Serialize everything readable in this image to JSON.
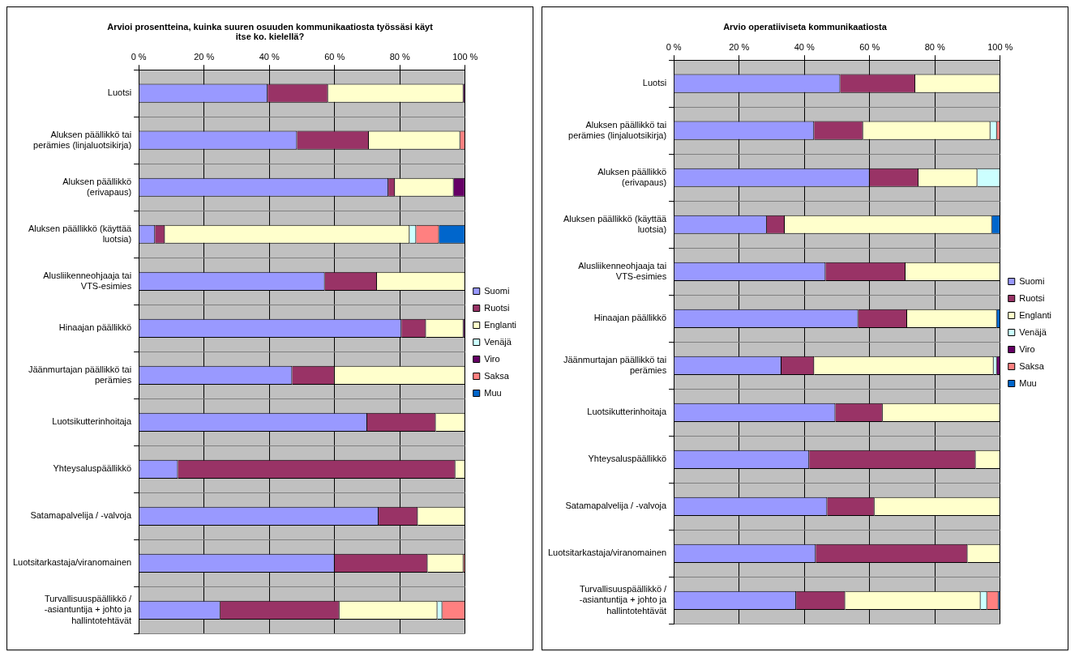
{
  "chart_data": [
    {
      "type": "bar",
      "orientation": "horizontal",
      "stacked": true,
      "title": "Arvioi prosentteina, kuinka suuren osuuden kommunikaatiosta työssäsi käyt itse ko. kielellä?",
      "categories": [
        "Luotsi",
        "Aluksen päällikkö tai perämies (linjaluotsikirja)",
        "Aluksen päällikkö (erivapaus)",
        "Aluksen päällikkö (käyttää luotsia)",
        "Alusliikenneohjaaja tai VTS-esimies",
        "Hinaajan päällikkö",
        "Jäänmurtajan päällikkö tai perämies",
        "Luotsikutterinhoitaja",
        "Yhteysaluspäällikkö",
        "Satamapalvelija / -valvoja",
        "Luotsitarkastaja/viranomainen",
        "Turvallisuuspäällikkö / -asiantuntija + johto ja hallintotehtävät"
      ],
      "series": [
        {
          "name": "Suomi",
          "color": "#9999ff",
          "values": [
            39.5,
            48.5,
            76.5,
            5,
            57,
            80.5,
            47,
            70,
            12,
            73.5,
            60,
            25
          ]
        },
        {
          "name": "Ruotsi",
          "color": "#993366",
          "values": [
            18.5,
            22,
            2,
            3,
            16,
            7.5,
            13,
            21,
            85,
            12,
            28.5,
            36.5
          ]
        },
        {
          "name": "Englanti",
          "color": "#ffffcc",
          "values": [
            41.5,
            28,
            18,
            75,
            27,
            11.5,
            40,
            9,
            3,
            14.5,
            11,
            30
          ]
        },
        {
          "name": "Venäjä",
          "color": "#ccffff",
          "values": [
            0,
            0,
            0,
            2,
            0,
            0,
            0,
            0,
            0,
            0,
            0,
            1.5
          ]
        },
        {
          "name": "Viro",
          "color": "#660066",
          "values": [
            0.5,
            0,
            3.5,
            0,
            0,
            0.5,
            0,
            0,
            0,
            0,
            0,
            0
          ]
        },
        {
          "name": "Saksa",
          "color": "#ff8080",
          "values": [
            0,
            1.5,
            0,
            7,
            0,
            0,
            0,
            0,
            0,
            0,
            0.5,
            7
          ]
        },
        {
          "name": "Muu",
          "color": "#0066cc",
          "values": [
            0,
            0,
            0,
            8,
            0,
            0,
            0,
            0,
            0,
            0,
            0,
            0
          ]
        }
      ],
      "xlim": [
        0,
        100
      ],
      "xticks": [
        {
          "value": 0,
          "label": "0 %"
        },
        {
          "value": 20,
          "label": "20 %"
        },
        {
          "value": 40,
          "label": "40 %"
        },
        {
          "value": 60,
          "label": "60 %"
        },
        {
          "value": 80,
          "label": "80 %"
        },
        {
          "value": 100,
          "label": "100 %"
        }
      ],
      "grid": true,
      "legend": "right"
    },
    {
      "type": "bar",
      "orientation": "horizontal",
      "stacked": true,
      "title": "Arvio operatiiviseta kommunikaatiosta",
      "categories": [
        "Luotsi",
        "Aluksen päällikkö tai perämies (linjaluotsikirja)",
        "Aluksen päällikkö (erivapaus)",
        "Aluksen päällikkö (käyttää luotsia)",
        "Alusliikenneohjaaja tai VTS-esimies",
        "Hinaajan päällikkö",
        "Jäänmurtajan päällikkö tai perämies",
        "Luotsikutterinhoitaja",
        "Yhteysaluspäällikkö",
        "Satamapalvelija / -valvoja",
        "Luotsitarkastaja/viranomainen",
        "Turvallisuuspäällikkö / -asiantuntija + johto ja hallintotehtävät"
      ],
      "series": [
        {
          "name": "Suomi",
          "color": "#9999ff",
          "values": [
            51,
            43,
            60,
            28.5,
            46.5,
            56.5,
            33,
            49.5,
            41.5,
            47,
            43.5,
            37.5
          ]
        },
        {
          "name": "Ruotsi",
          "color": "#993366",
          "values": [
            23,
            15,
            15,
            5.5,
            24.5,
            15,
            10,
            14.5,
            51,
            14.5,
            46.5,
            15
          ]
        },
        {
          "name": "Englanti",
          "color": "#ffffcc",
          "values": [
            26,
            39,
            18,
            63.5,
            29,
            27.5,
            55,
            36,
            7.5,
            38.5,
            10,
            41.5
          ]
        },
        {
          "name": "Venäjä",
          "color": "#ccffff",
          "values": [
            0,
            2,
            7,
            0,
            0,
            0,
            1,
            0,
            0,
            0,
            0,
            2
          ]
        },
        {
          "name": "Viro",
          "color": "#660066",
          "values": [
            0,
            0,
            0,
            0,
            0,
            0,
            1,
            0,
            0,
            0,
            0,
            0
          ]
        },
        {
          "name": "Saksa",
          "color": "#ff8080",
          "values": [
            0,
            1,
            0,
            0,
            0,
            0,
            0,
            0,
            0,
            0,
            0,
            3.5
          ]
        },
        {
          "name": "Muu",
          "color": "#0066cc",
          "values": [
            0,
            0,
            0,
            2.5,
            0,
            1,
            0,
            0,
            0,
            0,
            0,
            0.5
          ]
        }
      ],
      "xlim": [
        0,
        100
      ],
      "xticks": [
        {
          "value": 0,
          "label": "0 %"
        },
        {
          "value": 20,
          "label": "20 %"
        },
        {
          "value": 40,
          "label": "40 %"
        },
        {
          "value": 60,
          "label": "60 %"
        },
        {
          "value": 80,
          "label": "80 %"
        },
        {
          "value": 100,
          "label": "100 %"
        }
      ],
      "grid": true,
      "legend": "right"
    }
  ]
}
